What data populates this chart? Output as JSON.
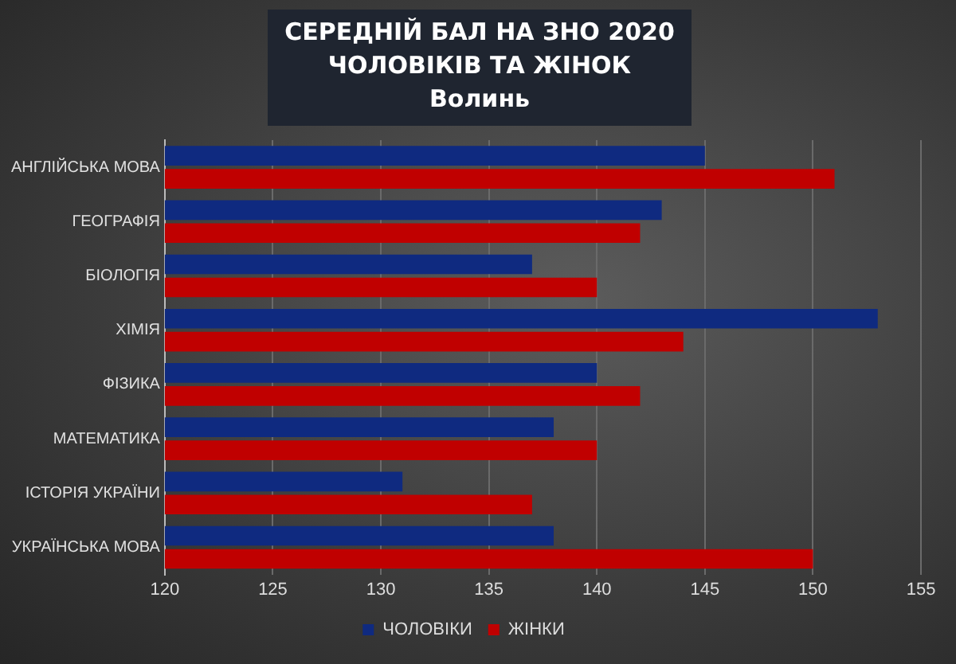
{
  "chart_data": {
    "type": "bar",
    "orientation": "horizontal",
    "title": "СЕРЕДНІЙ БАЛ НА ЗНО 2020 ЧОЛОВІКІВ ТА ЖІНОК",
    "subtitle": "Волинь",
    "categories": [
      "АНГЛІЙСЬКА МОВА",
      "ГЕОГРАФІЯ",
      "БІОЛОГІЯ",
      "ХІМІЯ",
      "ФІЗИКА",
      "МАТЕМАТИКА",
      "ІСТОРІЯ УКРАЇНИ",
      "УКРАЇНСЬКА МОВА"
    ],
    "series": [
      {
        "name": "ЧОЛОВІКИ",
        "color": "#0f2a80",
        "values": [
          145,
          143,
          137,
          153,
          140,
          138,
          131,
          138
        ]
      },
      {
        "name": "ЖІНКИ",
        "color": "#c00000",
        "values": [
          151,
          142,
          140,
          144,
          142,
          140,
          137,
          150
        ]
      }
    ],
    "xlim": [
      120,
      155
    ],
    "xticks": [
      120,
      125,
      130,
      135,
      140,
      145,
      150,
      155
    ],
    "grid": "x",
    "legend": "bottom"
  }
}
